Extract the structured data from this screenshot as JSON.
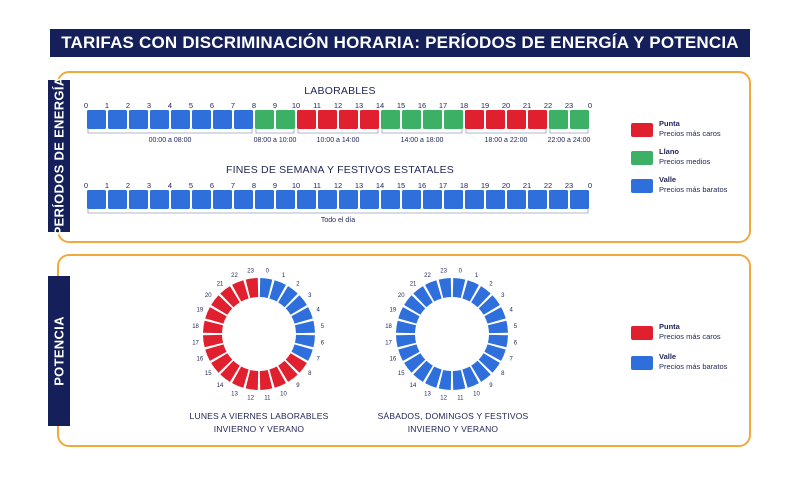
{
  "title": "TARIFAS CON DISCRIMINACIÓN HORARIA: PERÍODOS DE ENERGÍA Y POTENCIA",
  "colors": {
    "punta": "#e0202e",
    "llano": "#3cb064",
    "valle": "#2f6fdc",
    "navy": "#15205a",
    "accent": "#f2a93b"
  },
  "energy": {
    "side_label": "PERÍODOS DE ENERGÍA",
    "weekday": {
      "title": "LABORABLES",
      "hour_labels": [
        "0",
        "1",
        "2",
        "3",
        "4",
        "5",
        "6",
        "7",
        "8",
        "9",
        "10",
        "11",
        "12",
        "13",
        "14",
        "15",
        "16",
        "17",
        "18",
        "19",
        "20",
        "21",
        "22",
        "23",
        "0"
      ],
      "periods": [
        "valle",
        "valle",
        "valle",
        "valle",
        "valle",
        "valle",
        "valle",
        "valle",
        "llano",
        "llano",
        "punta",
        "punta",
        "punta",
        "punta",
        "llano",
        "llano",
        "llano",
        "llano",
        "punta",
        "punta",
        "punta",
        "punta",
        "llano",
        "llano"
      ],
      "ranges": [
        {
          "label": "00:00 a 08:00",
          "start": 0,
          "end": 8
        },
        {
          "label": "08:00 a 10:00",
          "start": 8,
          "end": 10
        },
        {
          "label": "10:00 a 14:00",
          "start": 10,
          "end": 14
        },
        {
          "label": "14:00 a 18:00",
          "start": 14,
          "end": 18
        },
        {
          "label": "18:00 a 22:00",
          "start": 18,
          "end": 22
        },
        {
          "label": "22:00 a 24:00",
          "start": 22,
          "end": 24
        }
      ]
    },
    "weekend": {
      "title": "FINES DE SEMANA Y FESTIVOS ESTATALES",
      "hour_labels": [
        "0",
        "1",
        "2",
        "3",
        "4",
        "5",
        "6",
        "7",
        "8",
        "9",
        "10",
        "11",
        "12",
        "13",
        "14",
        "15",
        "16",
        "17",
        "18",
        "19",
        "20",
        "21",
        "22",
        "23",
        "0"
      ],
      "periods": [
        "valle",
        "valle",
        "valle",
        "valle",
        "valle",
        "valle",
        "valle",
        "valle",
        "valle",
        "valle",
        "valle",
        "valle",
        "valle",
        "valle",
        "valle",
        "valle",
        "valle",
        "valle",
        "valle",
        "valle",
        "valle",
        "valle",
        "valle",
        "valle"
      ],
      "ranges": [
        {
          "label": "Todo el día",
          "start": 0,
          "end": 24
        }
      ]
    },
    "legend": [
      {
        "key": "punta",
        "name": "Punta",
        "desc": "Precios más caros"
      },
      {
        "key": "llano",
        "name": "Llano",
        "desc": "Precios medios"
      },
      {
        "key": "valle",
        "name": "Valle",
        "desc": "Precios más baratos"
      }
    ]
  },
  "power": {
    "side_label": "POTENCIA",
    "hour_labels": [
      "0",
      "1",
      "2",
      "3",
      "4",
      "5",
      "6",
      "7",
      "8",
      "9",
      "10",
      "11",
      "12",
      "13",
      "14",
      "15",
      "16",
      "17",
      "18",
      "19",
      "20",
      "21",
      "22",
      "23"
    ],
    "rings": [
      {
        "caption_line1": "LUNES A VIERNES LABORABLES",
        "caption_line2": "INVIERNO Y VERANO",
        "periods": [
          "valle",
          "valle",
          "valle",
          "valle",
          "valle",
          "valle",
          "valle",
          "valle",
          "punta",
          "punta",
          "punta",
          "punta",
          "punta",
          "punta",
          "punta",
          "punta",
          "punta",
          "punta",
          "punta",
          "punta",
          "punta",
          "punta",
          "punta",
          "punta"
        ]
      },
      {
        "caption_line1": "SÁBADOS, DOMINGOS Y FESTIVOS",
        "caption_line2": "INVIERNO Y VERANO",
        "periods": [
          "valle",
          "valle",
          "valle",
          "valle",
          "valle",
          "valle",
          "valle",
          "valle",
          "valle",
          "valle",
          "valle",
          "valle",
          "valle",
          "valle",
          "valle",
          "valle",
          "valle",
          "valle",
          "valle",
          "valle",
          "valle",
          "valle",
          "valle",
          "valle"
        ]
      }
    ],
    "legend": [
      {
        "key": "punta",
        "name": "Punta",
        "desc": "Precios más caros"
      },
      {
        "key": "valle",
        "name": "Valle",
        "desc": "Precios más baratos"
      }
    ]
  }
}
